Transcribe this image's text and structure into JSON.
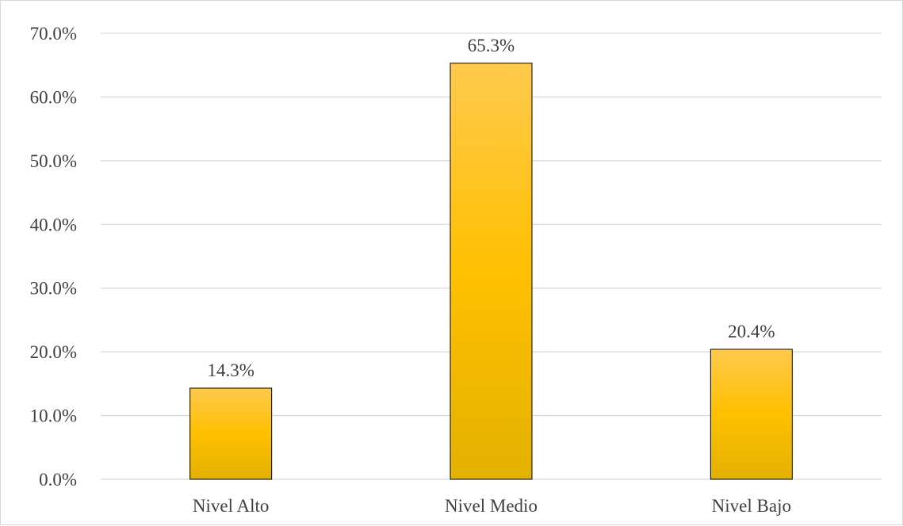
{
  "chart_data": {
    "type": "bar",
    "categories": [
      "Nivel Alto",
      "Nivel Medio",
      "Nivel Bajo"
    ],
    "values": [
      14.3,
      65.3,
      20.4
    ],
    "data_labels": [
      "14.3%",
      "65.3%",
      "20.4%"
    ],
    "title": "",
    "xlabel": "",
    "ylabel": "",
    "ylim": [
      0,
      70
    ],
    "y_ticks": [
      "0.0%",
      "10.0%",
      "20.0%",
      "30.0%",
      "40.0%",
      "50.0%",
      "60.0%",
      "70.0%"
    ],
    "grid": true,
    "legend": "none",
    "colors": {
      "bar_top": "#ffc94d",
      "bar_mid": "#ffc000",
      "bar_bottom": "#e3b100",
      "bar_border": "#000000",
      "grid": "#d9d9d9",
      "text": "#404040"
    }
  }
}
